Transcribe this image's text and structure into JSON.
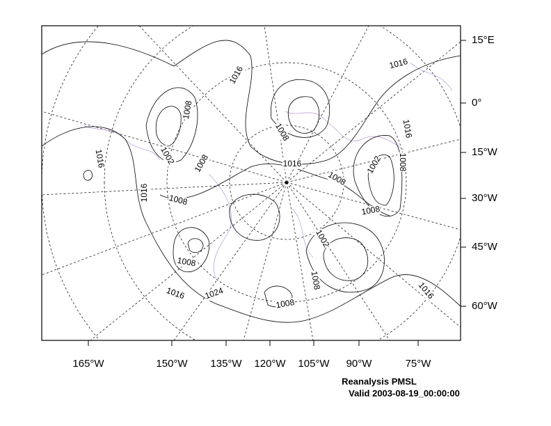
{
  "map": {
    "lat_labels": [
      "15°E",
      "0°",
      "15°W",
      "30°W",
      "45°W",
      "60°W"
    ],
    "lon_labels": [
      "165°W",
      "150°W",
      "135°W",
      "120°W",
      "105°W",
      "90°W",
      "75°W"
    ],
    "contour_labels": [
      1016,
      1016,
      1008,
      1016,
      1016,
      1002,
      1008,
      1008,
      1016,
      1008,
      1002,
      1008,
      1016,
      1008,
      1008,
      1002,
      1008,
      1008,
      1016,
      1016,
      1024,
      1008
    ],
    "caption": {
      "title": "Reanalysis PMSL",
      "valid": "Valid 2003-08-19_00:00:00"
    }
  }
}
